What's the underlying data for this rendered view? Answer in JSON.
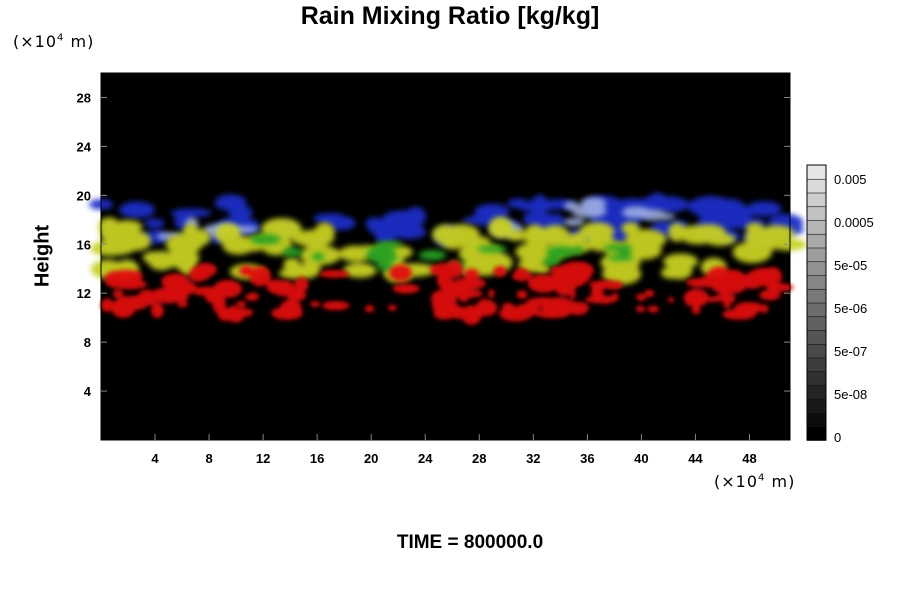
{
  "chart_data": {
    "type": "heatmap",
    "title": "Rain Mixing Ratio [kg/kg]",
    "ylabel": "Height",
    "xlabel": "",
    "x_unit": {
      "prefix": "(×10",
      "exp": "4",
      "suffix": " m)"
    },
    "y_unit": {
      "prefix": "(×10",
      "exp": "4",
      "suffix": " m)"
    },
    "xlim": [
      0,
      51
    ],
    "ylim": [
      0,
      30
    ],
    "x_ticks": [
      4,
      8,
      12,
      16,
      20,
      24,
      28,
      32,
      36,
      40,
      44,
      48
    ],
    "y_ticks": [
      4,
      8,
      12,
      16,
      20,
      24,
      28
    ],
    "colorbar": {
      "labels": [
        "0.005",
        "0.0005",
        "5e-05",
        "5e-06",
        "5e-07",
        "5e-08",
        "0"
      ],
      "levels": 20
    },
    "background_color": "#000000",
    "bands": [
      {
        "color": "#1c2fc8",
        "y_range": [
          16.5,
          19.5
        ],
        "description": ""
      },
      {
        "color": "#a8b8e8",
        "y_range": [
          16.5,
          19.5
        ]
      },
      {
        "color": "#c8d020",
        "y_range": [
          13.5,
          17.5
        ]
      },
      {
        "color": "#28a020",
        "y_range": [
          14,
          16.5
        ]
      },
      {
        "color": "#e01010",
        "y_range": [
          10.2,
          14
        ]
      }
    ]
  },
  "footer": {
    "label": "TIME = ",
    "value": "800000.0"
  }
}
